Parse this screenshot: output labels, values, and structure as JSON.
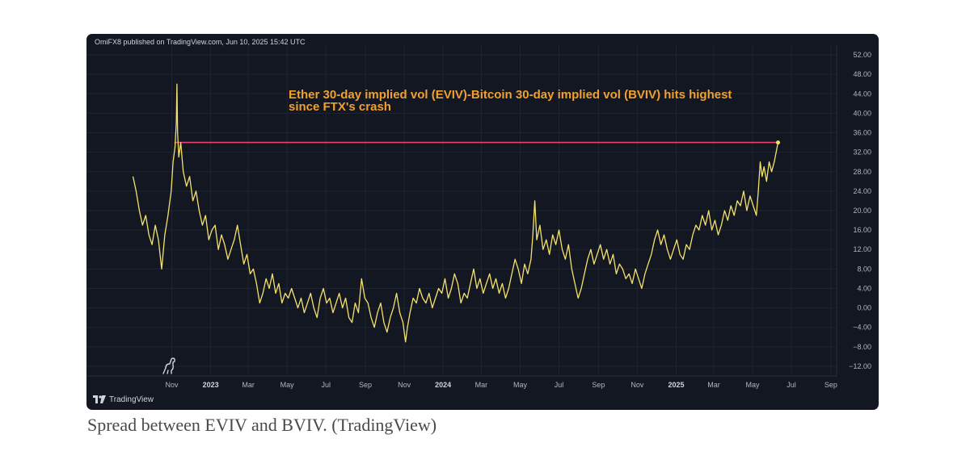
{
  "header": {
    "publisher": "OmiFX8 published on TradingView.com, Jun 10, 2025 15:42 UTC"
  },
  "footer": {
    "logo_text": "TradingView"
  },
  "caption": "Spread between EVIV and BVIV. (TradingView)",
  "colors": {
    "background": "#131722",
    "series": "#f5e26b",
    "reference_line": "#e8436e",
    "annotation": "#f0a030",
    "grid": "#1f2433",
    "tick_text": "#b2b5be"
  },
  "chart_data": {
    "type": "line",
    "annotation": [
      "Ether 30-day implied vol (EVIV)-Bitcoin 30-day implied vol (BVIV) hits highest",
      "since FTX's crash"
    ],
    "y_ticks": [
      "52.00",
      "48.00",
      "44.00",
      "40.00",
      "36.00",
      "32.00",
      "28.00",
      "24.00",
      "20.00",
      "16.00",
      "12.00",
      "8.00",
      "4.00",
      "0.00",
      "−4.00",
      "−8.00",
      "−12.00"
    ],
    "x_ticks": [
      {
        "label": "Nov",
        "bold": false,
        "x": "2022-11-01"
      },
      {
        "label": "2023",
        "bold": true,
        "x": "2023-01-01"
      },
      {
        "label": "Mar",
        "bold": false,
        "x": "2023-03-01"
      },
      {
        "label": "May",
        "bold": false,
        "x": "2023-05-01"
      },
      {
        "label": "Jul",
        "bold": false,
        "x": "2023-07-01"
      },
      {
        "label": "Sep",
        "bold": false,
        "x": "2023-09-01"
      },
      {
        "label": "Nov",
        "bold": false,
        "x": "2023-11-01"
      },
      {
        "label": "2024",
        "bold": true,
        "x": "2024-01-01"
      },
      {
        "label": "Mar",
        "bold": false,
        "x": "2024-03-01"
      },
      {
        "label": "May",
        "bold": false,
        "x": "2024-05-01"
      },
      {
        "label": "Jul",
        "bold": false,
        "x": "2024-07-01"
      },
      {
        "label": "Sep",
        "bold": false,
        "x": "2024-09-01"
      },
      {
        "label": "Nov",
        "bold": false,
        "x": "2024-11-01"
      },
      {
        "label": "2025",
        "bold": true,
        "x": "2025-01-01"
      },
      {
        "label": "Mar",
        "bold": false,
        "x": "2025-03-01"
      },
      {
        "label": "May",
        "bold": false,
        "x": "2025-05-01"
      },
      {
        "label": "Jul",
        "bold": false,
        "x": "2025-07-01"
      },
      {
        "label": "Sep",
        "bold": false,
        "x": "2025-09-01"
      }
    ],
    "ylim": [
      -14,
      54
    ],
    "xlim": [
      "2022-06-20",
      "2025-09-10"
    ],
    "grid": true,
    "reference_line": {
      "y": 34,
      "x_start": "2022-11-05",
      "x_end": "2025-06-10"
    },
    "series": [
      {
        "color": "#f5e26b",
        "points": [
          [
            "2022-09-01",
            27
          ],
          [
            "2022-09-06",
            24
          ],
          [
            "2022-09-11",
            20
          ],
          [
            "2022-09-16",
            17
          ],
          [
            "2022-09-21",
            19
          ],
          [
            "2022-09-26",
            15
          ],
          [
            "2022-10-01",
            13
          ],
          [
            "2022-10-06",
            17
          ],
          [
            "2022-10-11",
            14
          ],
          [
            "2022-10-16",
            8
          ],
          [
            "2022-10-21",
            15
          ],
          [
            "2022-10-26",
            19
          ],
          [
            "2022-10-31",
            24
          ],
          [
            "2022-11-03",
            30
          ],
          [
            "2022-11-06",
            33
          ],
          [
            "2022-11-08",
            38
          ],
          [
            "2022-11-09",
            46
          ],
          [
            "2022-11-10",
            36
          ],
          [
            "2022-11-12",
            31
          ],
          [
            "2022-11-15",
            34
          ],
          [
            "2022-11-19",
            28
          ],
          [
            "2022-11-24",
            25
          ],
          [
            "2022-11-29",
            27
          ],
          [
            "2022-12-04",
            22
          ],
          [
            "2022-12-09",
            24
          ],
          [
            "2022-12-14",
            20
          ],
          [
            "2022-12-19",
            17
          ],
          [
            "2022-12-24",
            19
          ],
          [
            "2022-12-29",
            14
          ],
          [
            "2023-01-03",
            16
          ],
          [
            "2023-01-08",
            17
          ],
          [
            "2023-01-13",
            12
          ],
          [
            "2023-01-18",
            15
          ],
          [
            "2023-01-23",
            13
          ],
          [
            "2023-01-28",
            10
          ],
          [
            "2023-02-02",
            12
          ],
          [
            "2023-02-07",
            14
          ],
          [
            "2023-02-12",
            17
          ],
          [
            "2023-02-17",
            13
          ],
          [
            "2023-02-22",
            9
          ],
          [
            "2023-02-27",
            11
          ],
          [
            "2023-03-04",
            7
          ],
          [
            "2023-03-09",
            8
          ],
          [
            "2023-03-14",
            5
          ],
          [
            "2023-03-19",
            1
          ],
          [
            "2023-03-24",
            3
          ],
          [
            "2023-03-29",
            6
          ],
          [
            "2023-04-03",
            4
          ],
          [
            "2023-04-08",
            7
          ],
          [
            "2023-04-13",
            3
          ],
          [
            "2023-04-18",
            5
          ],
          [
            "2023-04-23",
            1
          ],
          [
            "2023-04-28",
            3
          ],
          [
            "2023-05-03",
            2
          ],
          [
            "2023-05-08",
            4
          ],
          [
            "2023-05-13",
            2
          ],
          [
            "2023-05-18",
            0
          ],
          [
            "2023-05-23",
            2
          ],
          [
            "2023-05-28",
            -1
          ],
          [
            "2023-06-02",
            1
          ],
          [
            "2023-06-07",
            3
          ],
          [
            "2023-06-12",
            0
          ],
          [
            "2023-06-17",
            -2
          ],
          [
            "2023-06-22",
            2
          ],
          [
            "2023-06-27",
            4
          ],
          [
            "2023-07-02",
            1
          ],
          [
            "2023-07-07",
            2
          ],
          [
            "2023-07-12",
            -1
          ],
          [
            "2023-07-17",
            1
          ],
          [
            "2023-07-22",
            3
          ],
          [
            "2023-07-27",
            0
          ],
          [
            "2023-08-01",
            2
          ],
          [
            "2023-08-06",
            -2
          ],
          [
            "2023-08-11",
            -3
          ],
          [
            "2023-08-16",
            1
          ],
          [
            "2023-08-21",
            -1
          ],
          [
            "2023-08-26",
            6
          ],
          [
            "2023-08-31",
            2
          ],
          [
            "2023-09-05",
            1
          ],
          [
            "2023-09-10",
            -2
          ],
          [
            "2023-09-15",
            -4
          ],
          [
            "2023-09-20",
            -1
          ],
          [
            "2023-09-25",
            1
          ],
          [
            "2023-09-30",
            -3
          ],
          [
            "2023-10-05",
            -5
          ],
          [
            "2023-10-10",
            -2
          ],
          [
            "2023-10-15",
            0
          ],
          [
            "2023-10-20",
            3
          ],
          [
            "2023-10-25",
            -1
          ],
          [
            "2023-10-30",
            -3
          ],
          [
            "2023-11-03",
            -7
          ],
          [
            "2023-11-06",
            -4
          ],
          [
            "2023-11-10",
            -1
          ],
          [
            "2023-11-15",
            2
          ],
          [
            "2023-11-20",
            1
          ],
          [
            "2023-11-25",
            4
          ],
          [
            "2023-11-30",
            2
          ],
          [
            "2023-12-05",
            1
          ],
          [
            "2023-12-10",
            3
          ],
          [
            "2023-12-15",
            0
          ],
          [
            "2023-12-20",
            2
          ],
          [
            "2023-12-25",
            4
          ],
          [
            "2023-12-30",
            3
          ],
          [
            "2024-01-04",
            6
          ],
          [
            "2024-01-09",
            2
          ],
          [
            "2024-01-14",
            4
          ],
          [
            "2024-01-19",
            7
          ],
          [
            "2024-01-24",
            5
          ],
          [
            "2024-01-29",
            1
          ],
          [
            "2024-02-03",
            3
          ],
          [
            "2024-02-08",
            2
          ],
          [
            "2024-02-13",
            5
          ],
          [
            "2024-02-18",
            8
          ],
          [
            "2024-02-23",
            4
          ],
          [
            "2024-02-28",
            6
          ],
          [
            "2024-03-04",
            3
          ],
          [
            "2024-03-09",
            5
          ],
          [
            "2024-03-14",
            7
          ],
          [
            "2024-03-19",
            4
          ],
          [
            "2024-03-24",
            6
          ],
          [
            "2024-03-29",
            3
          ],
          [
            "2024-04-03",
            5
          ],
          [
            "2024-04-08",
            2
          ],
          [
            "2024-04-13",
            4
          ],
          [
            "2024-04-18",
            7
          ],
          [
            "2024-04-23",
            10
          ],
          [
            "2024-04-28",
            8
          ],
          [
            "2024-05-03",
            5
          ],
          [
            "2024-05-08",
            9
          ],
          [
            "2024-05-13",
            7
          ],
          [
            "2024-05-18",
            10
          ],
          [
            "2024-05-21",
            15
          ],
          [
            "2024-05-24",
            22
          ],
          [
            "2024-05-27",
            14
          ],
          [
            "2024-06-01",
            17
          ],
          [
            "2024-06-06",
            12
          ],
          [
            "2024-06-11",
            14
          ],
          [
            "2024-06-16",
            11
          ],
          [
            "2024-06-21",
            15
          ],
          [
            "2024-06-26",
            13
          ],
          [
            "2024-07-01",
            16
          ],
          [
            "2024-07-06",
            12
          ],
          [
            "2024-07-11",
            10
          ],
          [
            "2024-07-16",
            13
          ],
          [
            "2024-07-21",
            8
          ],
          [
            "2024-07-26",
            5
          ],
          [
            "2024-07-31",
            2
          ],
          [
            "2024-08-05",
            4
          ],
          [
            "2024-08-10",
            7
          ],
          [
            "2024-08-15",
            10
          ],
          [
            "2024-08-20",
            12
          ],
          [
            "2024-08-25",
            9
          ],
          [
            "2024-08-30",
            11
          ],
          [
            "2024-09-04",
            13
          ],
          [
            "2024-09-09",
            10
          ],
          [
            "2024-09-14",
            12
          ],
          [
            "2024-09-19",
            9
          ],
          [
            "2024-09-24",
            11
          ],
          [
            "2024-09-29",
            7
          ],
          [
            "2024-10-04",
            9
          ],
          [
            "2024-10-09",
            8
          ],
          [
            "2024-10-14",
            6
          ],
          [
            "2024-10-19",
            7
          ],
          [
            "2024-10-24",
            5
          ],
          [
            "2024-10-29",
            8
          ],
          [
            "2024-11-03",
            6
          ],
          [
            "2024-11-08",
            4
          ],
          [
            "2024-11-13",
            7
          ],
          [
            "2024-11-18",
            9
          ],
          [
            "2024-11-23",
            11
          ],
          [
            "2024-11-28",
            14
          ],
          [
            "2024-12-03",
            16
          ],
          [
            "2024-12-08",
            13
          ],
          [
            "2024-12-13",
            15
          ],
          [
            "2024-12-18",
            12
          ],
          [
            "2024-12-23",
            10
          ],
          [
            "2024-12-28",
            12
          ],
          [
            "2025-01-02",
            14
          ],
          [
            "2025-01-07",
            11
          ],
          [
            "2025-01-12",
            10
          ],
          [
            "2025-01-17",
            13
          ],
          [
            "2025-01-22",
            12
          ],
          [
            "2025-01-27",
            15
          ],
          [
            "2025-02-01",
            17
          ],
          [
            "2025-02-06",
            16
          ],
          [
            "2025-02-11",
            19
          ],
          [
            "2025-02-16",
            17
          ],
          [
            "2025-02-21",
            20
          ],
          [
            "2025-02-26",
            16
          ],
          [
            "2025-03-03",
            18
          ],
          [
            "2025-03-08",
            15
          ],
          [
            "2025-03-13",
            17
          ],
          [
            "2025-03-18",
            20
          ],
          [
            "2025-03-23",
            18
          ],
          [
            "2025-03-28",
            21
          ],
          [
            "2025-04-02",
            19
          ],
          [
            "2025-04-07",
            22
          ],
          [
            "2025-04-12",
            21
          ],
          [
            "2025-04-17",
            24
          ],
          [
            "2025-04-22",
            20
          ],
          [
            "2025-04-27",
            23
          ],
          [
            "2025-05-02",
            21
          ],
          [
            "2025-05-07",
            19
          ],
          [
            "2025-05-10",
            24
          ],
          [
            "2025-05-13",
            30
          ],
          [
            "2025-05-16",
            27
          ],
          [
            "2025-05-19",
            29
          ],
          [
            "2025-05-23",
            26
          ],
          [
            "2025-05-27",
            30
          ],
          [
            "2025-05-31",
            28
          ],
          [
            "2025-06-04",
            30
          ],
          [
            "2025-06-07",
            32
          ],
          [
            "2025-06-10",
            34
          ]
        ]
      }
    ]
  }
}
